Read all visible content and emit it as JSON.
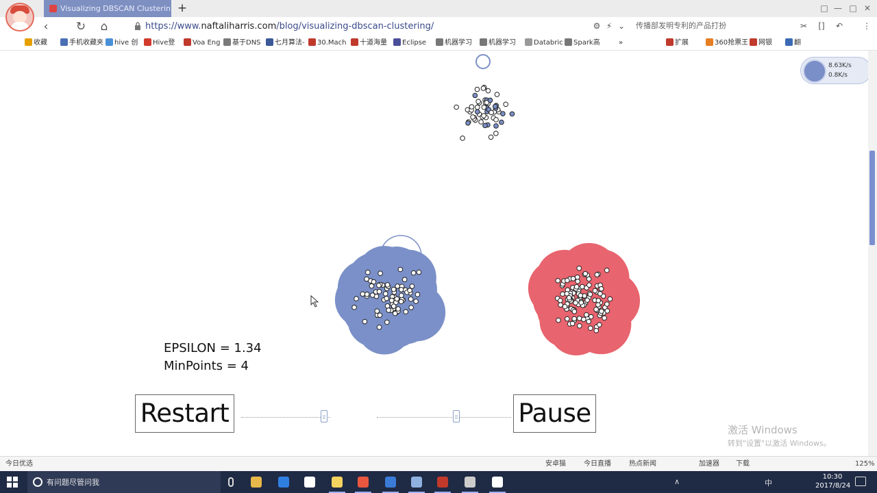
{
  "browser": {
    "tab_title": "Visualizing DBSCAN Clusterin",
    "new_tab_label": "+",
    "url_prefix": "https://www.",
    "url_host": "naftaliharris.com",
    "url_path": "/blog/visualizing-dbscan-clustering/",
    "search_suggestion": "传播部发明专利的产品打扮",
    "window_buttons": [
      "□",
      "—",
      "□",
      "✕"
    ],
    "nav": {
      "back": "‹",
      "refresh": "↻",
      "home": "⌂"
    },
    "nav_icons": [
      "⚙",
      "⚡",
      "⌄",
      "✂",
      "[]",
      "↶",
      "⋮"
    ]
  },
  "bookmarks": [
    {
      "label": "收藏",
      "color": "#e5a000"
    },
    {
      "label": "手机收藏夹",
      "color": "#4a6fb5"
    },
    {
      "label": "hive 创",
      "color": "#4a90d9"
    },
    {
      "label": "Hive登",
      "color": "#d33a2c"
    },
    {
      "label": "Voa Eng",
      "color": "#c0392b"
    },
    {
      "label": "基于DNS",
      "color": "#7a7a7a"
    },
    {
      "label": "七月算法-",
      "color": "#3b5998"
    },
    {
      "label": "30.Mach",
      "color": "#c0392b"
    },
    {
      "label": "十道海量",
      "color": "#c0392b"
    },
    {
      "label": "Eclipse",
      "color": "#4b4f9a"
    },
    {
      "label": "机器学习",
      "color": "#777777"
    },
    {
      "label": "机器学习",
      "color": "#777777"
    },
    {
      "label": "Databric",
      "color": "#999999"
    },
    {
      "label": "Spark高",
      "color": "#777777"
    },
    {
      "label": "»",
      "color": "transparent"
    },
    {
      "label": "扩展",
      "color": "#c0392b"
    },
    {
      "label": "360抢票王",
      "color": "#e67e22"
    },
    {
      "label": "网银",
      "color": "#c0392b"
    },
    {
      "label": "翻",
      "color": "#3a6ab5"
    }
  ],
  "net_widget": {
    "up": "8.63K/s",
    "down": "0.8K/s"
  },
  "demo": {
    "epsilon_text": "EPSILON = 1.34",
    "minpoints_text": "MinPoints = 4",
    "restart_label": "Restart",
    "pause_label": "Pause",
    "colors": {
      "cluster_blue": "#7b90c8",
      "cluster_red": "#e8646e",
      "point_stroke": "#222222"
    }
  },
  "watermark": {
    "title": "激活 Windows",
    "subtitle": "转到\"设置\"以激活 Windows。"
  },
  "statusbar": {
    "left": "今日优选",
    "items": [
      "安卓猫",
      "今日直播",
      "热点新闻",
      "加速器",
      "下载"
    ],
    "zoom": "125%"
  },
  "taskbar": {
    "search_placeholder": "有问题尽管问我",
    "apps": [
      {
        "name": "file-explorer",
        "color": "#e8b84a"
      },
      {
        "name": "edge",
        "color": "#2f7fe0"
      },
      {
        "name": "store",
        "color": "#ffffff"
      },
      {
        "name": "app-4",
        "color": "#f4d35e"
      },
      {
        "name": "chrome",
        "color": "#e9573f"
      },
      {
        "name": "app-6",
        "color": "#3b7bd8"
      },
      {
        "name": "app-7",
        "color": "#8fb1e0"
      },
      {
        "name": "app-8",
        "color": "#c0392b"
      },
      {
        "name": "app-9",
        "color": "#cccccc"
      },
      {
        "name": "app-10",
        "color": "#ffffff"
      }
    ],
    "ime": "中",
    "time": "10:30",
    "date": "2017/8/24"
  }
}
